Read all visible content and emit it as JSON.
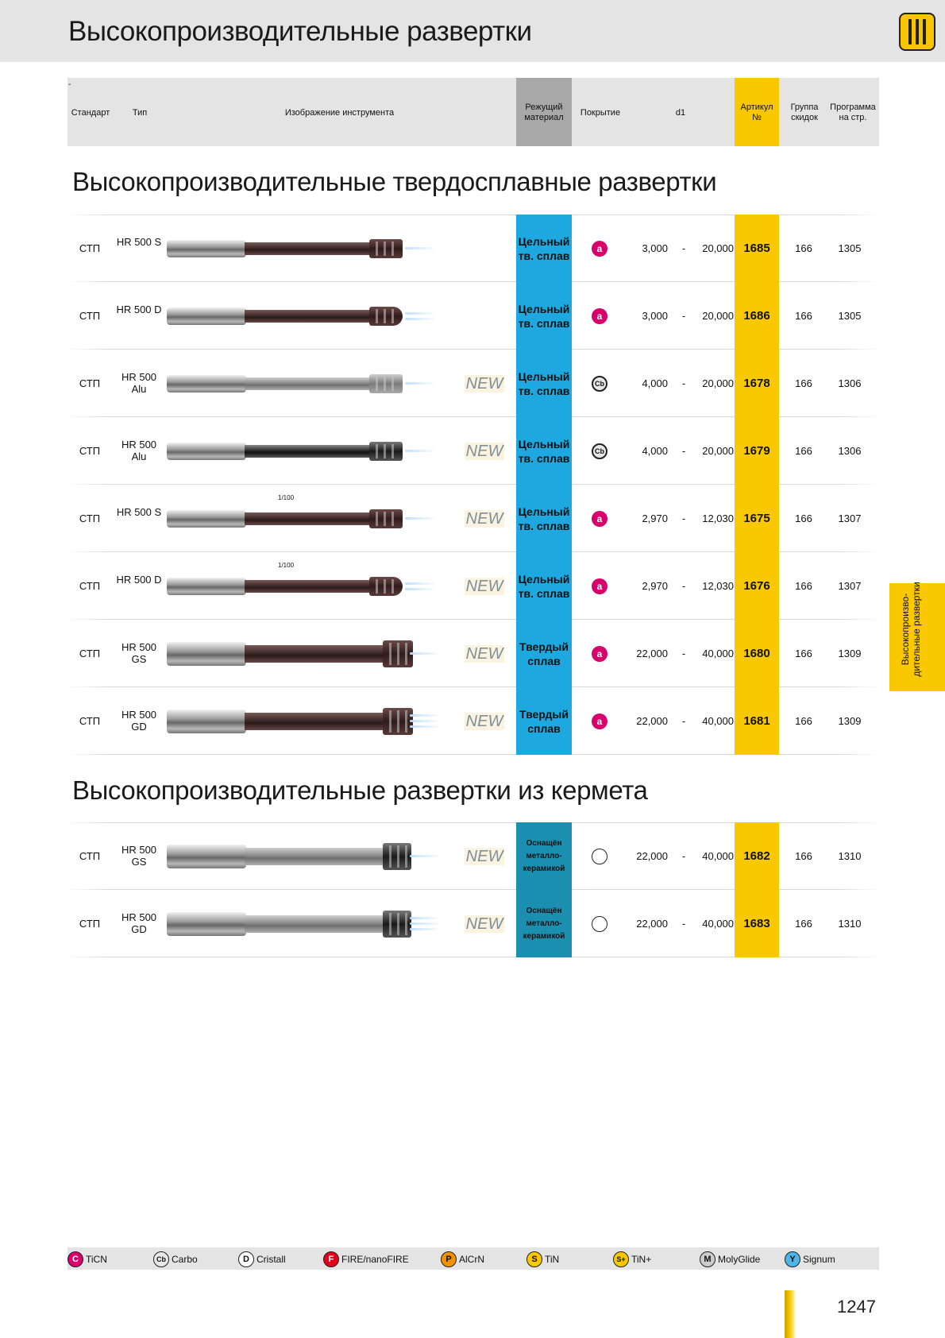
{
  "page": {
    "title": "Высокопроизводительные развертки",
    "number": "1247"
  },
  "header": {
    "dash": "-",
    "standard": "Стандарт",
    "type": "Тип",
    "image": "Изображение инструмента",
    "cutting_material": "Режущий материал",
    "coating": "Покрытие",
    "d1": "d1",
    "article": "Артикул №",
    "discount_group": "Группа скидок",
    "program_page": "Программа на стр."
  },
  "sections": [
    {
      "title": "Высокопроизводительные твердосплавные развертки",
      "rows": [
        {
          "standard": "СТП",
          "type": "HR 500 S",
          "new": "",
          "material": "Цельный тв. сплав",
          "coating": "a",
          "d_min": "3,000",
          "dash": "-",
          "d_max": "20,000",
          "article": "1685",
          "group": "166",
          "page": "1305"
        },
        {
          "standard": "СТП",
          "type": "HR 500 D",
          "new": "",
          "material": "Цельный тв. сплав",
          "coating": "a",
          "d_min": "3,000",
          "dash": "-",
          "d_max": "20,000",
          "article": "1686",
          "group": "166",
          "page": "1305"
        },
        {
          "standard": "СТП",
          "type": "HR 500 Alu",
          "new": "NEW",
          "material": "Цельный тв. сплав",
          "coating": "Cb",
          "d_min": "4,000",
          "dash": "-",
          "d_max": "20,000",
          "article": "1678",
          "group": "166",
          "page": "1306"
        },
        {
          "standard": "СТП",
          "type": "HR 500 Alu",
          "new": "NEW",
          "material": "Цельный тв. сплав",
          "coating": "Cb",
          "d_min": "4,000",
          "dash": "-",
          "d_max": "20,000",
          "article": "1679",
          "group": "166",
          "page": "1306"
        },
        {
          "standard": "СТП",
          "type": "HR 500 S",
          "new": "NEW",
          "material": "Цельный тв. сплав",
          "coating": "a",
          "d_min": "2,970",
          "dash": "-",
          "d_max": "12,030",
          "article": "1675",
          "group": "166",
          "page": "1307",
          "tolerance": "1/100"
        },
        {
          "standard": "СТП",
          "type": "HR 500 D",
          "new": "NEW",
          "material": "Цельный тв. сплав",
          "coating": "a",
          "d_min": "2,970",
          "dash": "-",
          "d_max": "12,030",
          "article": "1676",
          "group": "166",
          "page": "1307",
          "tolerance": "1/100"
        },
        {
          "standard": "СТП",
          "type": "HR 500 GS",
          "new": "NEW",
          "material": "Твердый сплав",
          "coating": "a",
          "d_min": "22,000",
          "dash": "-",
          "d_max": "40,000",
          "article": "1680",
          "group": "166",
          "page": "1309"
        },
        {
          "standard": "СТП",
          "type": "HR 500 GD",
          "new": "NEW",
          "material": "Твердый сплав",
          "coating": "a",
          "d_min": "22,000",
          "dash": "-",
          "d_max": "40,000",
          "article": "1681",
          "group": "166",
          "page": "1309"
        }
      ]
    },
    {
      "title": "Высокопроизводительные развертки из кермета",
      "rows": [
        {
          "standard": "СТП",
          "type": "HR 500 GS",
          "new": "NEW",
          "material": "Оснащён металло-керамикой",
          "coating": "",
          "d_min": "22,000",
          "dash": "-",
          "d_max": "40,000",
          "article": "1682",
          "group": "166",
          "page": "1310"
        },
        {
          "standard": "СТП",
          "type": "HR 500 GD",
          "new": "NEW",
          "material": "Оснащён металло-керамикой",
          "coating": "",
          "d_min": "22,000",
          "dash": "-",
          "d_max": "40,000",
          "article": "1683",
          "group": "166",
          "page": "1310"
        }
      ]
    }
  ],
  "side_tab": "Высокопроизво-дительные развертки",
  "legend": [
    {
      "symbol": "C",
      "label": "TiCN",
      "color": "#d8006a"
    },
    {
      "symbol": "Cb",
      "label": "Carbo",
      "color": "#e8e8e8"
    },
    {
      "symbol": "D",
      "label": "Cristall",
      "color": "#ffffff"
    },
    {
      "symbol": "F",
      "label": "FIRE/nanoFIRE",
      "color": "#e3001b"
    },
    {
      "symbol": "P",
      "label": "AlCrN",
      "color": "#f39200"
    },
    {
      "symbol": "S",
      "label": "TiN",
      "color": "#f9c800"
    },
    {
      "symbol": "S+",
      "label": "TiN+",
      "color": "#f9c800"
    },
    {
      "symbol": "M",
      "label": "MolyGlide",
      "color": "#cccccc"
    },
    {
      "symbol": "Y",
      "label": "Signum",
      "color": "#4fb4e8"
    }
  ]
}
